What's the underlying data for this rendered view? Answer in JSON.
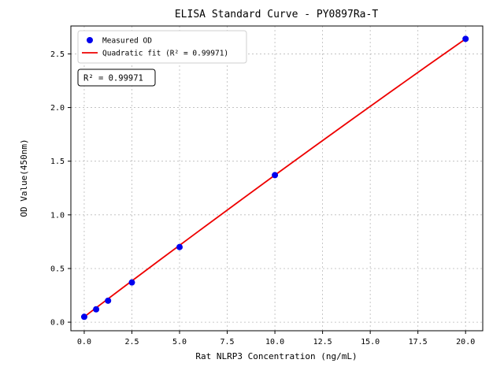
{
  "figure": {
    "background": "#ffffff"
  },
  "chart_data": {
    "type": "scatter",
    "title": "ELISA Standard Curve - PY0897Ra-T",
    "xlabel": "Rat NLRP3 Concentration (ng/mL)",
    "ylabel": "OD Value(450nm)",
    "xlim": [
      -0.7,
      20.9
    ],
    "ylim": [
      -0.08,
      2.76
    ],
    "xticks": [
      0.0,
      2.5,
      5.0,
      7.5,
      10.0,
      12.5,
      15.0,
      17.5,
      20.0
    ],
    "xtick_labels": [
      "0.0",
      "2.5",
      "5.0",
      "7.5",
      "10.0",
      "12.5",
      "15.0",
      "17.5",
      "20.0"
    ],
    "yticks": [
      0.0,
      0.5,
      1.0,
      1.5,
      2.0,
      2.5
    ],
    "ytick_labels": [
      "0.0",
      "0.5",
      "1.0",
      "1.5",
      "2.0",
      "2.5"
    ],
    "grid": true,
    "legend_position": "upper left",
    "r_squared": 0.99971,
    "annotation": {
      "text": "R² = 0.99971"
    },
    "series": [
      {
        "name": "Measured OD",
        "type": "scatter",
        "color": "#0000ee",
        "x": [
          0,
          0.625,
          1.25,
          2.5,
          5,
          10,
          20
        ],
        "y": [
          0.05,
          0.12,
          0.2,
          0.37,
          0.7,
          1.37,
          2.64
        ]
      },
      {
        "name": "Quadratic fit (R² = 0.99971)",
        "type": "line",
        "color": "#ee0000",
        "x": [
          0,
          2,
          4,
          6,
          8,
          10,
          12,
          14,
          16,
          18,
          20
        ],
        "y": [
          0.05,
          0.318,
          0.584,
          0.848,
          1.11,
          1.37,
          1.628,
          1.884,
          2.138,
          2.39,
          2.64
        ]
      }
    ]
  }
}
